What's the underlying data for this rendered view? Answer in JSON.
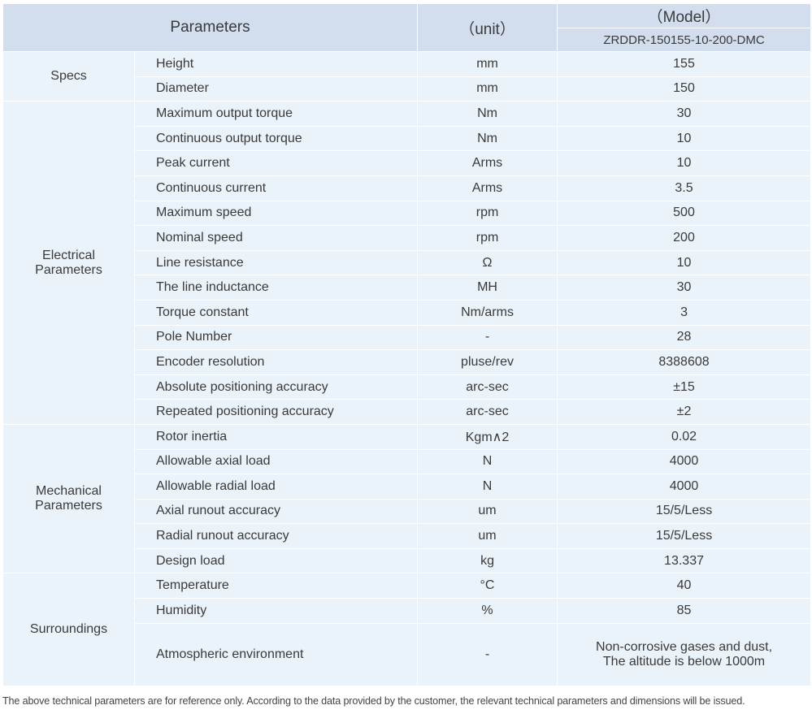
{
  "header": {
    "parameters": "Parameters",
    "unit": "（unit）",
    "model_label": "（Model）",
    "model": "ZRDDR-150155-10-200-DMC"
  },
  "groups": [
    {
      "name": "Specs",
      "rows": [
        [
          "Height",
          "mm",
          "155"
        ],
        [
          "Diameter",
          "mm",
          "150"
        ]
      ]
    },
    {
      "name": "Electrical Parameters",
      "rows": [
        [
          "Maximum output torque",
          "Nm",
          "30"
        ],
        [
          "Continuous output torque",
          "Nm",
          "10"
        ],
        [
          "Peak current",
          "Arms",
          "10"
        ],
        [
          "Continuous current",
          "Arms",
          "3.5"
        ],
        [
          "Maximum speed",
          "rpm",
          "500"
        ],
        [
          "Nominal speed",
          "rpm",
          "200"
        ],
        [
          "Line resistance",
          "Ω",
          "10"
        ],
        [
          "The line inductance",
          "MH",
          "30"
        ],
        [
          "Torque constant",
          "Nm/arms",
          "3"
        ],
        [
          "Pole Number",
          "-",
          "28"
        ],
        [
          "Encoder resolution",
          "pluse/rev",
          "8388608"
        ],
        [
          "Absolute positioning accuracy",
          "arc-sec",
          "±15"
        ],
        [
          "Repeated positioning accuracy",
          "arc-sec",
          "±2"
        ]
      ]
    },
    {
      "name": "Mechanical Parameters",
      "rows": [
        [
          "Rotor inertia",
          "Kgm∧2",
          "0.02"
        ],
        [
          "Allowable axial load",
          "N",
          "4000"
        ],
        [
          "Allowable radial load",
          "N",
          "4000"
        ],
        [
          "Axial runout accuracy",
          "um",
          "15/5/Less"
        ],
        [
          "Radial runout accuracy",
          "um",
          "15/5/Less"
        ],
        [
          "Design load",
          "kg",
          "13.337"
        ]
      ]
    },
    {
      "name": "Surroundings",
      "rows": [
        [
          "Temperature",
          "°C",
          "40"
        ],
        [
          "Humidity",
          "%",
          "85"
        ],
        [
          "Atmospheric environment",
          "-",
          [
            "Non-corrosive gases and dust,",
            "The altitude is below 1000m"
          ]
        ]
      ]
    }
  ],
  "footnote": "The above technical parameters are for reference only. According to the data provided by the customer, the relevant technical parameters and dimensions will be issued."
}
